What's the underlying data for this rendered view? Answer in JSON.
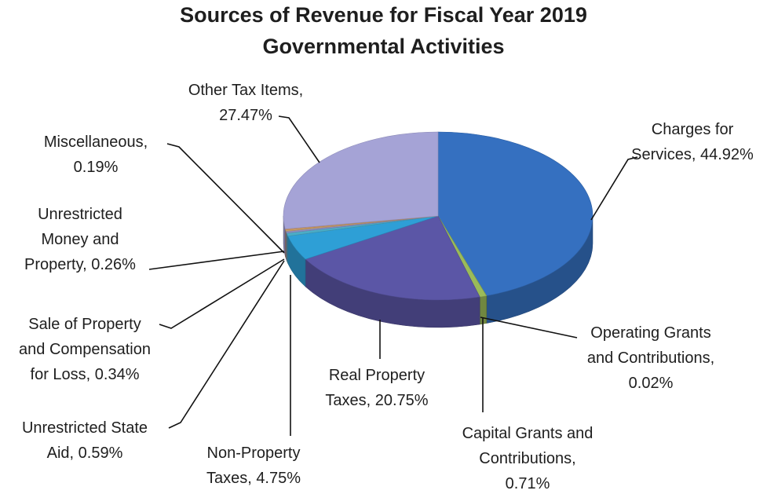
{
  "chart_data": {
    "type": "pie",
    "title": "Sources of Revenue for Fiscal Year 2019",
    "subtitle": "Governmental Activities",
    "slices": [
      {
        "label": "Charges for Services",
        "value": 44.92,
        "display": "44.92%",
        "color": "#3570c0",
        "label_lines": [
          "Charges for",
          "Services, 44.92%"
        ]
      },
      {
        "label": "Operating Grants and Contributions",
        "value": 0.02,
        "display": "0.02%",
        "color": "#8fb24a",
        "label_lines": [
          "Operating Grants",
          "and Contributions,",
          "0.02%"
        ]
      },
      {
        "label": "Capital Grants and Contributions",
        "value": 0.71,
        "display": "0.71%",
        "color": "#9bbb59",
        "label_lines": [
          "Capital Grants and",
          "Contributions,",
          "0.71%"
        ]
      },
      {
        "label": "Real Property Taxes",
        "value": 20.75,
        "display": "20.75%",
        "color": "#5b56a6",
        "label_lines": [
          "Real Property",
          "Taxes, 20.75%"
        ]
      },
      {
        "label": "Non-Property Taxes",
        "value": 4.75,
        "display": "4.75%",
        "color": "#2e9fd6",
        "label_lines": [
          "Non-Property",
          "Taxes, 4.75%"
        ]
      },
      {
        "label": "Unrestricted State Aid",
        "value": 0.59,
        "display": "0.59%",
        "color": "#4bacc6",
        "label_lines": [
          "Unrestricted State",
          "Aid, 0.59%"
        ]
      },
      {
        "label": "Sale of Property and Compensation for Loss",
        "value": 0.34,
        "display": "0.34%",
        "color": "#8a8fc4",
        "label_lines": [
          "Sale of Property",
          "and Compensation",
          "for Loss, 0.34%"
        ]
      },
      {
        "label": "Unrestricted Money and Property",
        "value": 0.26,
        "display": "0.26%",
        "color": "#c4a070",
        "label_lines": [
          "Unrestricted",
          "Money and",
          "Property, 0.26%"
        ]
      },
      {
        "label": "Miscellaneous",
        "value": 0.19,
        "display": "0.19%",
        "color": "#d89a5e",
        "label_lines": [
          "Miscellaneous,",
          "0.19%"
        ]
      },
      {
        "label": "Other Tax Items",
        "value": 27.47,
        "display": "27.47%",
        "color": "#a5a3d6",
        "label_lines": [
          "Other Tax Items,",
          "27.47%"
        ]
      }
    ],
    "legend": "none",
    "style": "3d-tilted"
  }
}
